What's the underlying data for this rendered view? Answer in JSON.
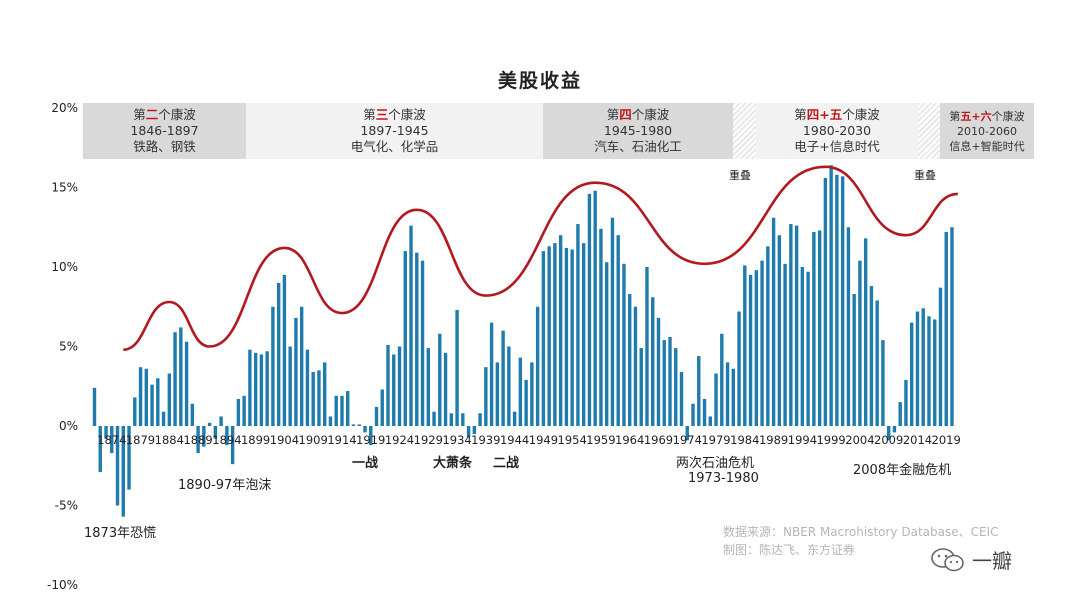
{
  "title": "美股收益",
  "waves": [
    {
      "prefix": "第",
      "highlight": "二",
      "suffix": "个康波",
      "years": "1846-1897",
      "desc": "铁路、钢铁"
    },
    {
      "prefix": "第",
      "highlight": "三",
      "suffix": "个康波",
      "years": "1897-1945",
      "desc": "电气化、化学品"
    },
    {
      "prefix": "第",
      "highlight": "四",
      "suffix": "个康波",
      "years": "1945-1980",
      "desc": "汽车、石油化工"
    },
    {
      "prefix": "第",
      "highlight": "四+五",
      "suffix": "个康波",
      "years": "1980-2030",
      "desc": "电子+信息时代"
    },
    {
      "prefix": "第",
      "highlight": "五+六",
      "suffix": "个康波",
      "years": "2010-2060",
      "desc": "信息+智能时代"
    }
  ],
  "overlap_labels": [
    "重叠",
    "重叠"
  ],
  "annotations": {
    "panic_1873": "1873年恐慌",
    "bubble_1890": "1890-97年泡沫",
    "ww1": "一战",
    "great_depression": "大萧条",
    "ww2": "二战",
    "oil_crisis_1": "两次石油危机",
    "oil_crisis_2": "1973-1980",
    "financial_crisis": "2008年金融危机"
  },
  "source_line1": "数据来源：NBER Macrohistory Database、CEIC",
  "source_line2": "制图：陈达飞、东方证券",
  "logo_text": "一瓣",
  "colors": {
    "bar": "#1f7bab",
    "trend": "#b2191e",
    "highlight": "#c0171c"
  },
  "chart_data": {
    "type": "bar",
    "title": "美股收益",
    "ylim": [
      -10,
      20
    ],
    "yticks": [
      "20%",
      "15%",
      "10%",
      "5%",
      "0%",
      "-5%",
      "-10%"
    ],
    "yticks_values": [
      20,
      15,
      10,
      5,
      0,
      -5,
      -10
    ],
    "x_start": 1871,
    "x_end": 2020,
    "xticks": [
      1874,
      1879,
      1884,
      1889,
      1894,
      1899,
      1904,
      1909,
      1914,
      1919,
      1924,
      1929,
      1934,
      1939,
      1944,
      1949,
      1954,
      1959,
      1964,
      1969,
      1974,
      1979,
      1984,
      1989,
      1994,
      1999,
      2004,
      2009,
      2014,
      2019
    ],
    "values": [
      2.4,
      -2.9,
      -0.8,
      -1.7,
      -5.0,
      -5.7,
      -4.0,
      1.8,
      3.7,
      3.6,
      2.6,
      3.0,
      0.9,
      3.3,
      5.9,
      6.2,
      5.3,
      1.4,
      -1.7,
      -1.3,
      0.2,
      -0.8,
      0.6,
      -1.2,
      -2.4,
      1.7,
      1.9,
      4.8,
      4.6,
      4.5,
      4.7,
      7.5,
      9.0,
      9.5,
      5.0,
      6.8,
      7.5,
      4.8,
      3.4,
      3.5,
      4.0,
      0.6,
      1.9,
      1.9,
      2.2,
      0.1,
      0.1,
      -0.4,
      -1.2,
      1.2,
      2.3,
      5.1,
      4.5,
      5.0,
      11.0,
      12.6,
      10.9,
      10.4,
      4.9,
      0.9,
      5.8,
      4.6,
      0.8,
      7.3,
      0.8,
      -0.7,
      -0.5,
      0.8,
      3.7,
      6.5,
      4.0,
      6.0,
      5.0,
      0.9,
      4.3,
      2.9,
      4.0,
      7.5,
      11.0,
      11.3,
      11.5,
      12.0,
      11.2,
      11.1,
      12.7,
      11.5,
      14.6,
      14.8,
      12.4,
      10.3,
      13.1,
      12.0,
      10.2,
      8.3,
      7.5,
      4.9,
      10.0,
      8.1,
      6.8,
      5.4,
      5.6,
      4.9,
      3.4,
      -0.9,
      1.4,
      4.4,
      1.7,
      0.6,
      3.3,
      5.8,
      4.0,
      3.6,
      7.2,
      10.1,
      9.5,
      9.8,
      10.4,
      11.3,
      13.1,
      12.0,
      10.2,
      12.7,
      12.6,
      10.0,
      9.7,
      12.2,
      12.3,
      15.6,
      16.4,
      15.8,
      15.7,
      12.5,
      8.3,
      10.4,
      11.8,
      8.8,
      7.9,
      5.4,
      -0.9,
      -0.4,
      1.5,
      2.9,
      6.5,
      7.2,
      7.4,
      6.9,
      6.7,
      8.7,
      12.2,
      12.5
    ]
  }
}
